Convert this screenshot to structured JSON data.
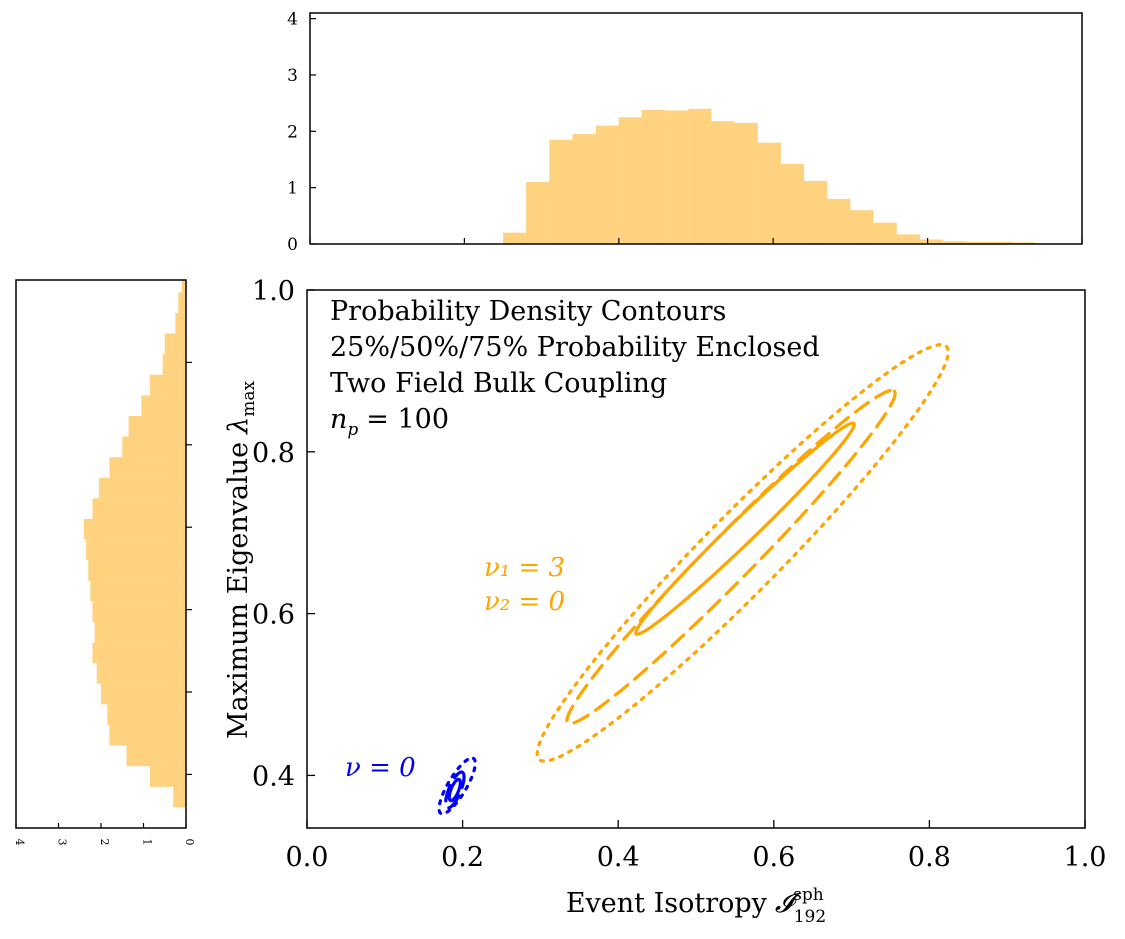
{
  "chart_data": {
    "type": "scatter",
    "main": {
      "xlabel": "Event Isotropy",
      "xlabel_symbol": "𝓘",
      "xlabel_sub": "192",
      "xlabel_sup": "sph",
      "ylabel": "Maximum Eigenvalue",
      "ylabel_symbol": "λ",
      "ylabel_sub": "max",
      "xlim": [
        0.0,
        1.0
      ],
      "ylim": [
        0.335,
        1.0
      ],
      "xticks": [
        "0.0",
        "0.2",
        "0.4",
        "0.6",
        "0.8",
        "1.0"
      ],
      "yticks": [
        "0.4",
        "0.6",
        "0.8",
        "1.0"
      ],
      "legend_lines": [
        "Probability Density Contours",
        "25%/50%/75% Probability Enclosed",
        "Two Field Bulk Coupling"
      ],
      "np_label": "n",
      "np_sub": "p",
      "np_value": "= 100",
      "series": [
        {
          "label_lines": [
            "ν₁ = 3",
            "ν₂ = 0"
          ],
          "color": "#FFA500",
          "contours": [
            {
              "level": "25%",
              "style": "solid",
              "center": [
                0.563,
                0.705
              ],
              "semi_major": [
                0.14,
                0.13
              ],
              "semi_minor": [
                0.0105,
                -0.0113
              ]
            },
            {
              "level": "50%",
              "style": "dashed",
              "center": [
                0.545,
                0.67
              ],
              "semi_major": [
                0.21,
                0.205
              ],
              "semi_minor": [
                0.02,
                -0.0205
              ]
            },
            {
              "level": "75%",
              "style": "dotted",
              "center": [
                0.56,
                0.675
              ],
              "semi_major": [
                0.262,
                0.255
              ],
              "semi_minor": [
                0.034,
                -0.035
              ]
            }
          ]
        },
        {
          "label_lines": [
            "ν = 0"
          ],
          "color": "#0000FF",
          "contours": [
            {
              "level": "25%",
              "style": "solid",
              "center": [
                0.19,
                0.382
              ],
              "semi_major": [
                0.0055,
                0.013
              ],
              "semi_minor": [
                0.0045,
                -0.0019
              ]
            },
            {
              "level": "50%",
              "style": "dashed",
              "center": [
                0.19,
                0.382
              ],
              "semi_major": [
                0.0095,
                0.022
              ],
              "semi_minor": [
                0.007,
                -0.003
              ]
            },
            {
              "level": "75%",
              "style": "dotted",
              "center": [
                0.193,
                0.387
              ],
              "semi_major": [
                0.021,
                0.034
              ],
              "semi_minor": [
                0.01,
                -0.006
              ]
            }
          ]
        }
      ]
    },
    "top_histogram": {
      "type": "bar",
      "color": "#FFA500",
      "xlim": [
        0.0,
        1.0
      ],
      "ylim": [
        0,
        4.1
      ],
      "yticks": [
        "0",
        "1",
        "2",
        "3",
        "4"
      ],
      "bin_edges": [
        0.25,
        0.28,
        0.31,
        0.34,
        0.37,
        0.4,
        0.43,
        0.46,
        0.49,
        0.52,
        0.55,
        0.58,
        0.61,
        0.64,
        0.67,
        0.7,
        0.73,
        0.76,
        0.79,
        0.82,
        0.85,
        0.88,
        0.91,
        0.94
      ],
      "values": [
        0.2,
        1.1,
        1.85,
        1.95,
        2.1,
        2.25,
        2.38,
        2.37,
        2.4,
        2.18,
        2.15,
        1.8,
        1.42,
        1.12,
        0.8,
        0.6,
        0.38,
        0.17,
        0.08,
        0.05,
        0.04,
        0.04,
        0.03
      ]
    },
    "left_histogram": {
      "type": "bar",
      "orientation": "horizontal",
      "color": "#FFA500",
      "xlim": [
        0,
        4
      ],
      "xticks": [
        "4",
        "3",
        "2",
        "1",
        "0"
      ],
      "ylim": [
        0.335,
        1.0
      ],
      "bin_edges": [
        0.36,
        0.385,
        0.41,
        0.435,
        0.46,
        0.485,
        0.51,
        0.535,
        0.56,
        0.585,
        0.61,
        0.635,
        0.66,
        0.685,
        0.71,
        0.735,
        0.76,
        0.785,
        0.81,
        0.835,
        0.86,
        0.885,
        0.91,
        0.935,
        0.96,
        0.985,
        1.0
      ],
      "values": [
        0.3,
        0.85,
        1.4,
        1.8,
        1.85,
        2.0,
        2.1,
        2.2,
        2.15,
        2.2,
        2.25,
        2.3,
        2.35,
        2.4,
        2.2,
        2.05,
        1.8,
        1.5,
        1.35,
        1.05,
        0.85,
        0.55,
        0.5,
        0.25,
        0.18,
        0.1
      ]
    }
  }
}
